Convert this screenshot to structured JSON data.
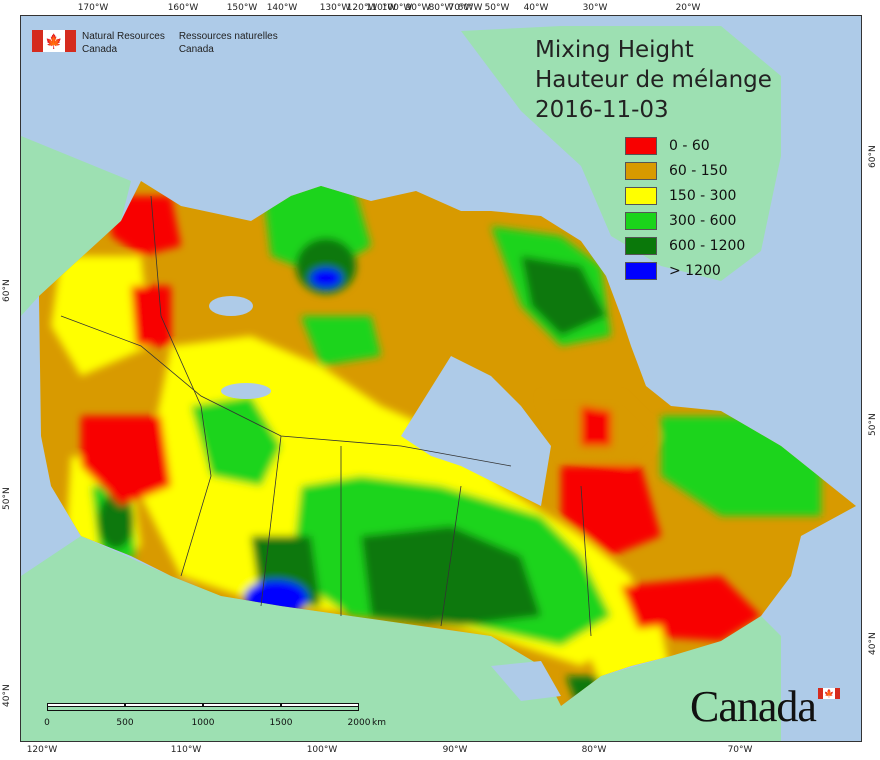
{
  "map": {
    "title_en": "Mixing Height",
    "title_fr": "Hauteur de mélange",
    "date": "2016-11-03",
    "legend": [
      {
        "label": "0 - 60",
        "color": "#f80000"
      },
      {
        "label": "60 - 150",
        "color": "#d89a00"
      },
      {
        "label": "150 - 300",
        "color": "#ffff00"
      },
      {
        "label": "300 - 600",
        "color": "#1ad41a"
      },
      {
        "label": "600 - 1200",
        "color": "#0a780a"
      },
      {
        "label": "> 1200",
        "color": "#0000ff"
      }
    ],
    "colors": {
      "ocean": "#aecbe8",
      "foreign_land": "#9de0b2",
      "lake": "#aecbe8",
      "boundary": "#333333"
    }
  },
  "agency": {
    "name_en": "Natural Resources",
    "name_en_2": "Canada",
    "name_fr": "Ressources naturelles",
    "name_fr_2": "Canada"
  },
  "wordmark": "Canada",
  "scale": {
    "labels": [
      "0",
      "500",
      "1000",
      "1500",
      "2000"
    ],
    "unit": "km"
  },
  "graticule": {
    "top": [
      "170°W",
      "160°W",
      "150°W",
      "140°W",
      "130°W",
      "120°W",
      "110°W",
      "100°W",
      "90°W",
      "80°W",
      "70°W",
      "60°W",
      "50°W",
      "40°W",
      "30°W",
      "20°W"
    ],
    "bottom": [
      "120°W",
      "110°W",
      "100°W",
      "90°W",
      "80°W",
      "70°W"
    ],
    "left": [
      "60°N",
      "50°N",
      "40°N"
    ],
    "right": [
      "60°N",
      "50°N",
      "40°N"
    ]
  }
}
